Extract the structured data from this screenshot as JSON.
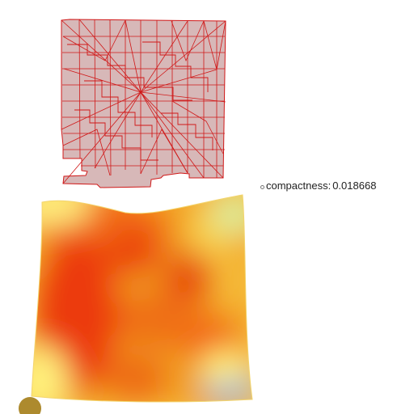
{
  "readout": {
    "label": "compactness:",
    "value": "0.018668"
  },
  "colors": {
    "mesh_fill": "#d7b8b8",
    "mesh_line": "#d01818",
    "heat_hot": "#e62e0e",
    "heat_mid": "#f08a10",
    "heat_warm": "#f7c64a",
    "heat_cool": "#fff07a",
    "heat_cold": "#8fb2e4",
    "handle": "#ad8a2e"
  },
  "icons": {
    "handle": "vertex-handle-icon",
    "readout_marker": "point-marker-icon"
  }
}
